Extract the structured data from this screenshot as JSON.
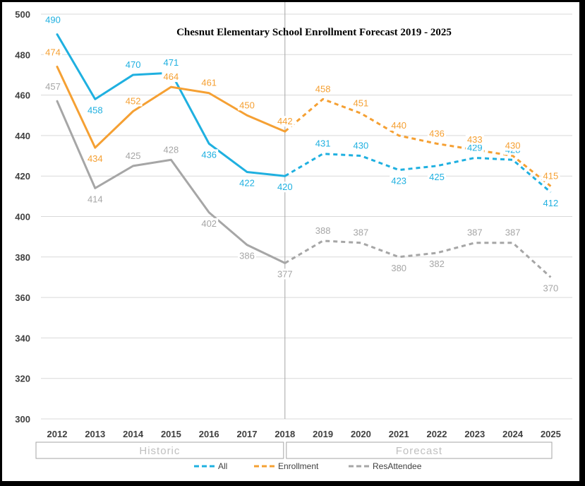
{
  "chart_data": {
    "type": "line",
    "title": "Chesnut Elementary School Enrollment Forecast 2019 - 2025",
    "categories": [
      "2012",
      "2013",
      "2014",
      "2015",
      "2016",
      "2017",
      "2018",
      "2019",
      "2020",
      "2021",
      "2022",
      "2023",
      "2024",
      "2025"
    ],
    "ylim": [
      300,
      500
    ],
    "yticks": [
      300,
      320,
      340,
      360,
      380,
      400,
      420,
      440,
      460,
      480,
      500
    ],
    "grid": true,
    "forecast_start_index": 6,
    "periods": [
      {
        "label": "Historic",
        "from": "2012",
        "to": "2018"
      },
      {
        "label": "Forecast",
        "from": "2019",
        "to": "2025"
      }
    ],
    "series": [
      {
        "name": "All",
        "color": "#1fb0e0",
        "values": [
          490,
          458,
          470,
          471,
          436,
          422,
          420,
          431,
          430,
          423,
          425,
          429,
          428,
          412
        ]
      },
      {
        "name": "Enrollment",
        "color": "#f5a033",
        "values": [
          474,
          434,
          452,
          464,
          461,
          450,
          442,
          458,
          451,
          440,
          436,
          433,
          430,
          415
        ]
      },
      {
        "name": "ResAttendee",
        "color": "#a6a6a6",
        "values": [
          457,
          414,
          425,
          428,
          402,
          386,
          377,
          388,
          387,
          380,
          382,
          387,
          387,
          370
        ]
      }
    ],
    "legend_position": "bottom"
  }
}
